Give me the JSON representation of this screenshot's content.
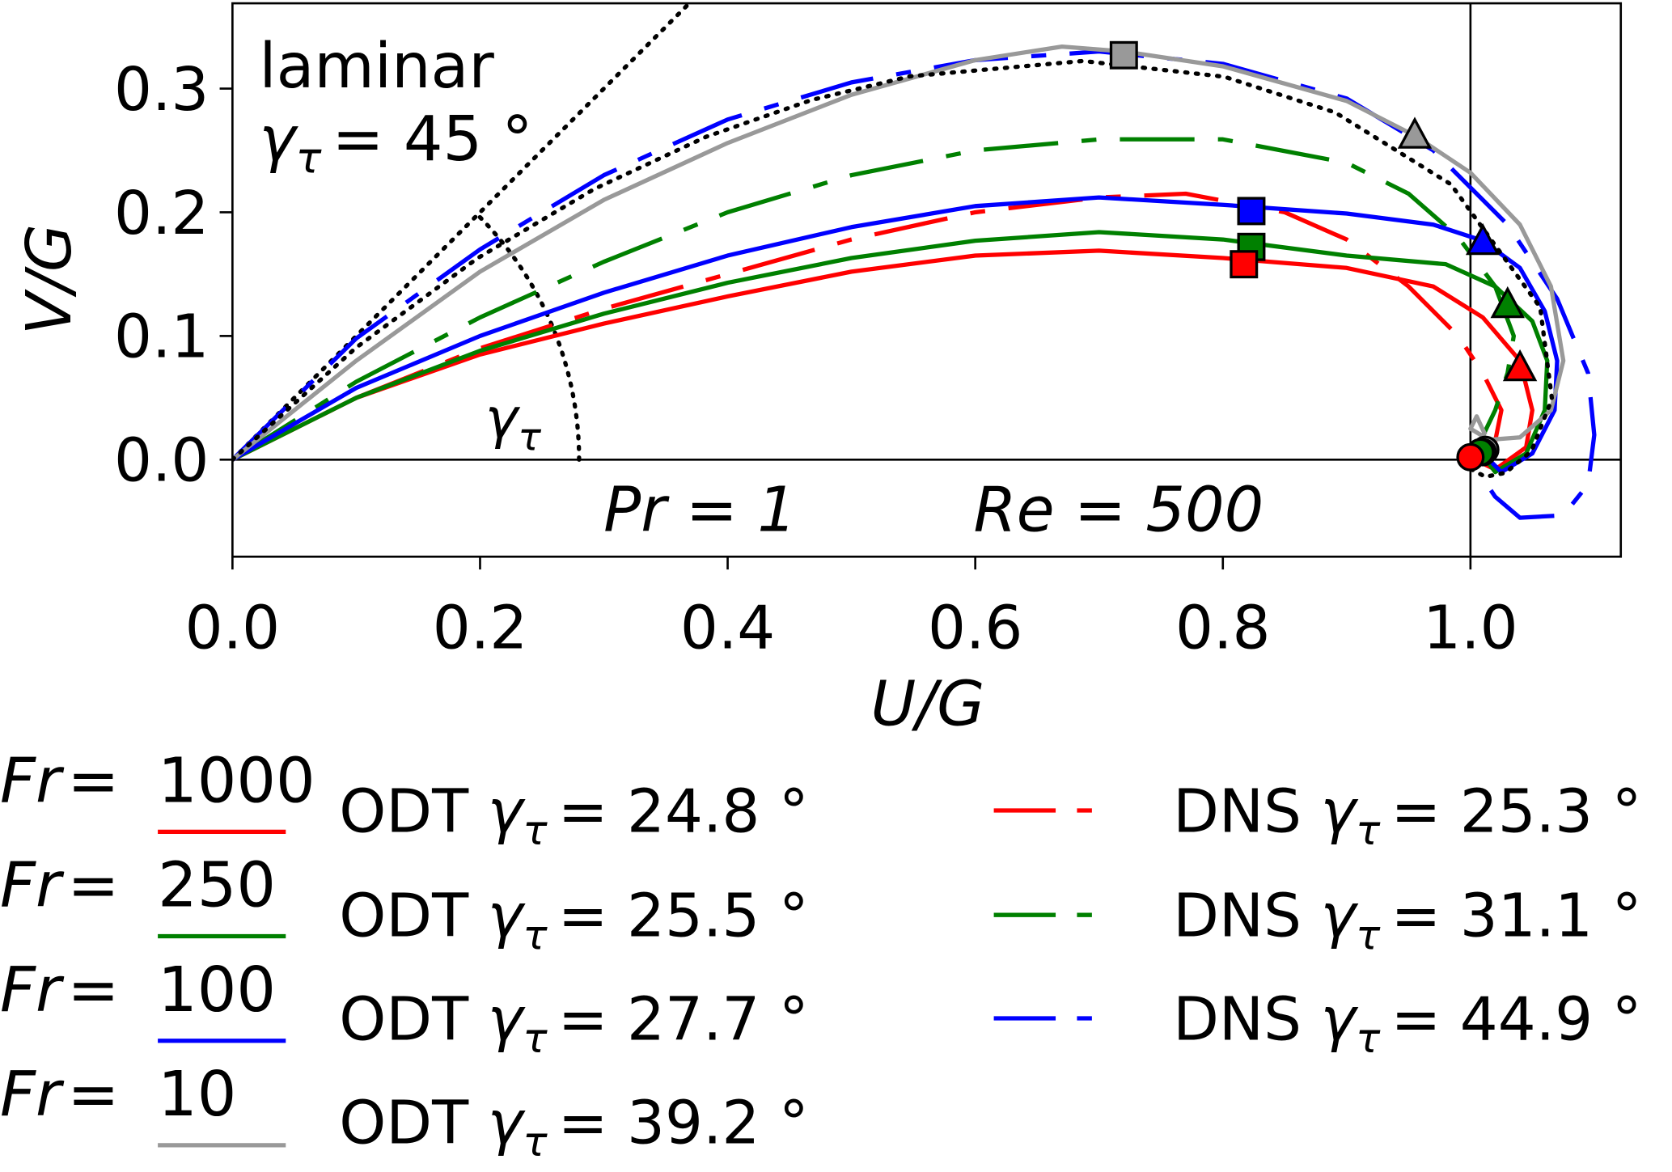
{
  "chart_data": {
    "type": "line",
    "title": "",
    "xlabel": "U/G",
    "ylabel": "V/G",
    "xlim": [
      0.0,
      1.121
    ],
    "ylim": [
      -0.078,
      0.369
    ],
    "xticks": [
      "0.0",
      "0.2",
      "0.4",
      "0.6",
      "0.8",
      "1.0"
    ],
    "xtick_values": [
      0.0,
      0.2,
      0.4,
      0.6,
      0.8,
      1.0
    ],
    "yticks": [
      "0.0",
      "0.1",
      "0.2",
      "0.3"
    ],
    "ytick_values": [
      0.0,
      0.1,
      0.2,
      0.3
    ],
    "grid": false,
    "reference_lines": {
      "x": 1.0,
      "y": 0.0
    },
    "annotations": {
      "laminar": "laminar",
      "gamma": "γ",
      "tau": "τ",
      "laminar_angle": "= 45 °",
      "pr": "Pr = 1",
      "re": "Re = 500"
    },
    "laminar": {
      "label": "laminar",
      "angle_deg": 45,
      "arc_radius": 0.28,
      "points": [
        [
          0,
          0
        ],
        [
          0.0995,
          0.0903
        ],
        [
          0.1977,
          0.1627
        ],
        [
          0.2923,
          0.2189
        ],
        [
          0.3826,
          0.261
        ],
        [
          0.4677,
          0.2908
        ],
        [
          0.5471,
          0.3099
        ],
        [
          0.687,
          0.3223
        ],
        [
          0.8012,
          0.3096
        ],
        [
          0.8908,
          0.2807
        ],
        [
          0.9842,
          0.2226
        ],
        [
          1.0563,
          0.1231
        ],
        [
          1.0658,
          0.0491
        ],
        [
          1.0493,
          0.007
        ],
        [
          1.0283,
          -0.0106
        ],
        [
          1.012,
          -0.0139
        ],
        [
          0.9981,
          -0.0064
        ],
        [
          1.0,
          0.0
        ]
      ]
    },
    "series": [
      {
        "name": "ODT Fr=1000",
        "fr": "1000",
        "method": "ODT",
        "angle": "= 24.8 °",
        "color": "#ff0000",
        "style": "solid",
        "points": [
          [
            0,
            0
          ],
          [
            0.1,
            0.05
          ],
          [
            0.2,
            0.085
          ],
          [
            0.3,
            0.11
          ],
          [
            0.4,
            0.132
          ],
          [
            0.5,
            0.152
          ],
          [
            0.6,
            0.165
          ],
          [
            0.7,
            0.169
          ],
          [
            0.8,
            0.163
          ],
          [
            0.9,
            0.155
          ],
          [
            0.97,
            0.14
          ],
          [
            1.01,
            0.115
          ],
          [
            1.04,
            0.08
          ],
          [
            1.05,
            0.04
          ],
          [
            1.045,
            0.01
          ],
          [
            1.02,
            -0.008
          ],
          [
            1.0,
            0.002
          ]
        ],
        "square": [
          0.817,
          0.158
        ],
        "triangle": [
          1.04,
          0.074
        ],
        "circle": [
          1.0,
          0.002
        ]
      },
      {
        "name": "ODT Fr=250",
        "fr": "250",
        "method": "ODT",
        "angle": "= 25.5 °",
        "color": "#008000",
        "style": "solid",
        "points": [
          [
            0,
            0
          ],
          [
            0.1,
            0.05
          ],
          [
            0.2,
            0.088
          ],
          [
            0.3,
            0.118
          ],
          [
            0.4,
            0.143
          ],
          [
            0.5,
            0.163
          ],
          [
            0.6,
            0.177
          ],
          [
            0.7,
            0.184
          ],
          [
            0.8,
            0.178
          ],
          [
            0.9,
            0.165
          ],
          [
            0.98,
            0.158
          ],
          [
            1.02,
            0.14
          ],
          [
            1.05,
            0.112
          ],
          [
            1.062,
            0.08
          ],
          [
            1.06,
            0.04
          ],
          [
            1.045,
            0.005
          ],
          [
            1.02,
            -0.01
          ],
          [
            1.008,
            0.006
          ]
        ],
        "square": [
          0.823,
          0.172
        ],
        "triangle": [
          1.03,
          0.125
        ],
        "circle": [
          1.008,
          0.006
        ]
      },
      {
        "name": "ODT Fr=100",
        "fr": "100",
        "method": "ODT",
        "angle": "= 27.7 °",
        "color": "#0000ff",
        "style": "solid",
        "points": [
          [
            0,
            0
          ],
          [
            0.1,
            0.058
          ],
          [
            0.2,
            0.1
          ],
          [
            0.3,
            0.135
          ],
          [
            0.4,
            0.165
          ],
          [
            0.5,
            0.188
          ],
          [
            0.6,
            0.205
          ],
          [
            0.7,
            0.212
          ],
          [
            0.8,
            0.206
          ],
          [
            0.9,
            0.199
          ],
          [
            0.97,
            0.19
          ],
          [
            1.01,
            0.177
          ],
          [
            1.04,
            0.155
          ],
          [
            1.06,
            0.12
          ],
          [
            1.07,
            0.08
          ],
          [
            1.068,
            0.04
          ],
          [
            1.05,
            0.005
          ],
          [
            1.025,
            -0.01
          ],
          [
            1.01,
            0.005
          ]
        ],
        "square": [
          0.823,
          0.201
        ],
        "triangle": [
          1.01,
          0.176
        ],
        "circle": [
          1.01,
          0.006
        ]
      },
      {
        "name": "ODT Fr=10",
        "fr": "10",
        "method": "ODT",
        "angle": "= 39.2 °",
        "color": "#999999",
        "style": "solid",
        "points": [
          [
            0,
            0
          ],
          [
            0.1,
            0.08
          ],
          [
            0.2,
            0.152
          ],
          [
            0.3,
            0.21
          ],
          [
            0.4,
            0.256
          ],
          [
            0.5,
            0.295
          ],
          [
            0.6,
            0.323
          ],
          [
            0.67,
            0.334
          ],
          [
            0.72,
            0.33
          ],
          [
            0.8,
            0.318
          ],
          [
            0.9,
            0.29
          ],
          [
            0.955,
            0.262
          ],
          [
            1.0,
            0.232
          ],
          [
            1.04,
            0.19
          ],
          [
            1.065,
            0.14
          ],
          [
            1.075,
            0.08
          ],
          [
            1.065,
            0.04
          ],
          [
            1.04,
            0.018
          ],
          [
            1.015,
            0.016
          ],
          [
            1.0,
            0.025
          ],
          [
            1.005,
            0.035
          ],
          [
            1.012,
            0.02
          ]
        ],
        "square": [
          0.72,
          0.327
        ],
        "triangle": [
          0.955,
          0.262
        ],
        "circle": [
          1.012,
          0.008
        ]
      },
      {
        "name": "DNS Fr=1000",
        "fr": "1000",
        "method": "DNS",
        "angle": "= 25.3 °",
        "color": "#ff0000",
        "style": "dashed",
        "points": [
          [
            0,
            0
          ],
          [
            0.1,
            0.05
          ],
          [
            0.2,
            0.09
          ],
          [
            0.3,
            0.122
          ],
          [
            0.4,
            0.15
          ],
          [
            0.5,
            0.178
          ],
          [
            0.6,
            0.2
          ],
          [
            0.7,
            0.212
          ],
          [
            0.77,
            0.215
          ],
          [
            0.85,
            0.2
          ],
          [
            0.9,
            0.178
          ],
          [
            0.95,
            0.14
          ],
          [
            0.99,
            0.1
          ],
          [
            1.01,
            0.07
          ],
          [
            1.025,
            0.04
          ],
          [
            1.02,
            0.015
          ],
          [
            1.01,
            0.008
          ]
        ]
      },
      {
        "name": "DNS Fr=250",
        "fr": "250",
        "method": "DNS",
        "angle": "= 31.1 °",
        "color": "#008000",
        "style": "dashed",
        "points": [
          [
            0,
            0
          ],
          [
            0.1,
            0.063
          ],
          [
            0.2,
            0.115
          ],
          [
            0.3,
            0.16
          ],
          [
            0.4,
            0.2
          ],
          [
            0.5,
            0.23
          ],
          [
            0.6,
            0.25
          ],
          [
            0.7,
            0.259
          ],
          [
            0.8,
            0.259
          ],
          [
            0.9,
            0.24
          ],
          [
            0.95,
            0.215
          ],
          [
            0.99,
            0.18
          ],
          [
            1.02,
            0.14
          ],
          [
            1.035,
            0.1
          ],
          [
            1.03,
            0.07
          ],
          [
            1.02,
            0.04
          ],
          [
            1.008,
            0.015
          ]
        ]
      },
      {
        "name": "DNS Fr=100",
        "fr": "100",
        "method": "DNS",
        "angle": "= 44.9 °",
        "color": "#0000ff",
        "style": "dashed",
        "points": [
          [
            0,
            0
          ],
          [
            0.1,
            0.098
          ],
          [
            0.2,
            0.17
          ],
          [
            0.3,
            0.23
          ],
          [
            0.4,
            0.275
          ],
          [
            0.5,
            0.305
          ],
          [
            0.6,
            0.323
          ],
          [
            0.7,
            0.33
          ],
          [
            0.8,
            0.32
          ],
          [
            0.9,
            0.292
          ],
          [
            0.97,
            0.25
          ],
          [
            1.03,
            0.19
          ],
          [
            1.07,
            0.13
          ],
          [
            1.095,
            0.07
          ],
          [
            1.1,
            0.02
          ],
          [
            1.095,
            -0.02
          ],
          [
            1.075,
            -0.045
          ],
          [
            1.04,
            -0.047
          ],
          [
            1.02,
            -0.03
          ],
          [
            1.01,
            -0.015
          ]
        ]
      }
    ],
    "legend": {
      "placement": "below",
      "fr_prefix": "Fr =",
      "fr_values": [
        "1000",
        "250",
        "100",
        "10"
      ],
      "fr_colors": [
        "#ff0000",
        "#008000",
        "#0000ff",
        "#999999"
      ]
    }
  }
}
